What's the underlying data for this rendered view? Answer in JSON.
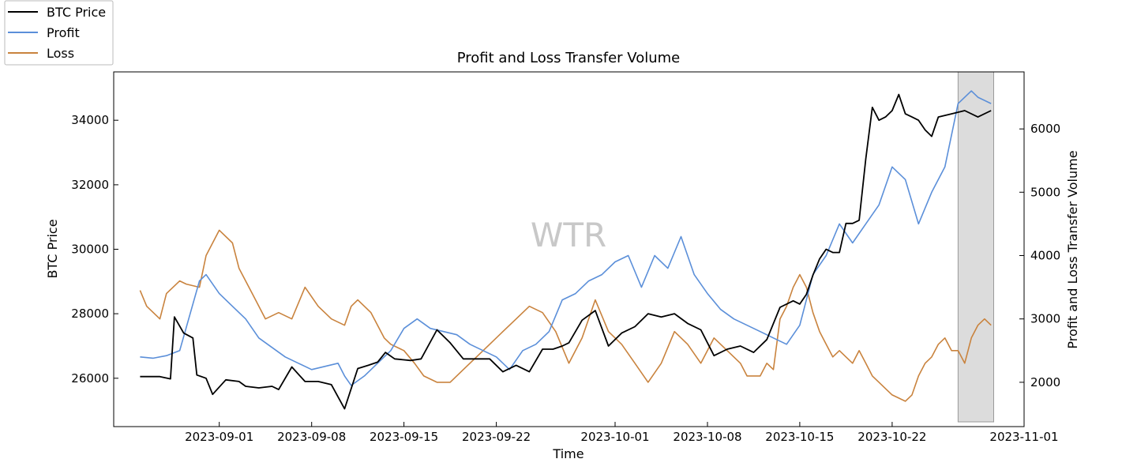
{
  "chart_data": {
    "type": "line",
    "title": "Profit and Loss Transfer Volume",
    "xlabel": "Time",
    "ylabel_left": "BTC Price",
    "ylabel_right": "Profit and Loss Transfer Volume",
    "watermark": "WTR",
    "x_start": "2023-08-26",
    "x_end": "2023-10-30",
    "xlim": [
      "2023-08-24",
      "2023-11-01"
    ],
    "ylim_left": [
      24500,
      35500
    ],
    "ylim_right": [
      1300,
      6900
    ],
    "x_ticks": [
      "2023-09-01",
      "2023-09-08",
      "2023-09-15",
      "2023-09-22",
      "2023-10-01",
      "2023-10-08",
      "2023-10-15",
      "2023-10-22",
      "2023-11-01"
    ],
    "y_ticks_left": [
      26000,
      28000,
      30000,
      32000,
      34000
    ],
    "y_ticks_right": [
      2000,
      3000,
      4000,
      5000,
      6000
    ],
    "highlight_range": [
      "2023-10-27",
      "2023-10-29.7"
    ],
    "legend": {
      "position": "top-left",
      "entries": [
        "BTC Price",
        "Profit",
        "Loss"
      ]
    },
    "series": [
      {
        "name": "BTC Price",
        "axis": "left",
        "color": "#000000",
        "x": [
          0,
          1.5,
          2.3,
          2.6,
          3.3,
          4.0,
          4.3,
          5.0,
          5.5,
          6.5,
          7.5,
          8.0,
          9.0,
          10.0,
          10.5,
          11.5,
          12.5,
          13.5,
          14.5,
          15.5,
          16.5,
          17.3,
          18.0,
          18.6,
          19.3,
          20.5,
          21.3,
          22.5,
          23.5,
          24.5,
          25.5,
          26.5,
          27.5,
          28.5,
          29.5,
          30.5,
          31.3,
          32.0,
          32.5,
          33.5,
          34.5,
          35.5,
          36.5,
          37.5,
          38.5,
          39.5,
          40.5,
          41.5,
          42.5,
          43.5,
          44.5,
          45.5,
          46.5,
          47.5,
          48.5,
          49.5,
          50.0,
          50.5,
          51.0,
          51.5,
          52.0,
          52.5,
          53.0,
          53.5,
          54.0,
          54.5,
          55.0,
          55.5,
          56.0,
          56.5,
          57.0,
          57.5,
          58.0,
          58.5,
          59.0,
          59.5,
          60.0,
          60.5,
          61.5,
          62.5,
          63.5,
          64.5
        ],
        "values": [
          26050,
          26050,
          25980,
          27900,
          27400,
          27250,
          26100,
          26000,
          25500,
          25950,
          25900,
          25750,
          25700,
          25750,
          25650,
          26350,
          25900,
          25900,
          25800,
          25050,
          26300,
          26400,
          26500,
          26800,
          26600,
          26550,
          26600,
          27500,
          27100,
          26600,
          26600,
          26600,
          26200,
          26400,
          26200,
          26900,
          26900,
          27000,
          27100,
          27800,
          28100,
          27000,
          27400,
          27600,
          28000,
          27900,
          28000,
          27700,
          27500,
          26700,
          26900,
          27000,
          26800,
          27200,
          28200,
          28400,
          28300,
          28600,
          29200,
          29700,
          30000,
          29900,
          29900,
          30800,
          30800,
          30900,
          32800,
          34400,
          34000,
          34100,
          34300,
          34800,
          34200,
          34100,
          34000,
          33700,
          33500,
          34100,
          34200,
          34300,
          34100,
          34300
        ]
      },
      {
        "name": "Profit",
        "axis": "right",
        "color": "#5b8fd9",
        "x": [
          0,
          1.0,
          2.0,
          3.0,
          4.5,
          5.0,
          6.0,
          7.0,
          8.0,
          9.0,
          10.0,
          11.0,
          12.0,
          13.0,
          14.0,
          15.0,
          15.5,
          16.0,
          17.0,
          18.0,
          19.0,
          20.0,
          21.0,
          22.0,
          23.0,
          24.0,
          25.0,
          26.0,
          27.0,
          28.0,
          29.0,
          30.0,
          31.0,
          32.0,
          33.0,
          34.0,
          35.0,
          36.0,
          37.0,
          38.0,
          39.0,
          40.0,
          41.0,
          42.0,
          43.0,
          44.0,
          45.0,
          46.0,
          47.0,
          48.0,
          49.0,
          50.0,
          51.0,
          52.0,
          53.0,
          54.0,
          55.0,
          56.0,
          57.0,
          58.0,
          59.0,
          60.0,
          61.0,
          62.0,
          63.0,
          63.5,
          64.5
        ],
        "values": [
          2400,
          2380,
          2420,
          2500,
          3600,
          3700,
          3400,
          3200,
          3000,
          2700,
          2550,
          2400,
          2300,
          2200,
          2250,
          2300,
          2100,
          1950,
          2100,
          2300,
          2500,
          2850,
          3000,
          2850,
          2800,
          2750,
          2600,
          2500,
          2400,
          2200,
          2500,
          2600,
          2800,
          3300,
          3400,
          3600,
          3700,
          3900,
          4000,
          3500,
          4000,
          3800,
          4300,
          3700,
          3400,
          3150,
          3000,
          2900,
          2800,
          2700,
          2600,
          2900,
          3700,
          4000,
          4500,
          4200,
          4500,
          4800,
          5400,
          5200,
          4500,
          5000,
          5400,
          6400,
          6600,
          6500,
          6400
        ]
      },
      {
        "name": "Loss",
        "axis": "right",
        "color": "#c9833e",
        "x": [
          0,
          0.5,
          1.5,
          2.0,
          3.0,
          3.5,
          4.5,
          5.0,
          6.0,
          7.0,
          7.5,
          8.5,
          9.5,
          10.5,
          11.5,
          12.5,
          13.5,
          14.5,
          15.5,
          16.0,
          16.5,
          17.5,
          18.5,
          19.0,
          20.0,
          20.8,
          21.5,
          22.5,
          23.5,
          24.5,
          25.5,
          26.5,
          27.5,
          28.5,
          29.5,
          30.5,
          31.5,
          32.5,
          33.5,
          34.5,
          35.5,
          36.5,
          37.5,
          38.5,
          39.5,
          40.5,
          41.5,
          42.5,
          43.5,
          44.5,
          45.5,
          46.0,
          46.5,
          47.0,
          47.5,
          48.0,
          48.5,
          49.0,
          49.5,
          50.0,
          50.5,
          51.0,
          51.5,
          52.0,
          52.5,
          53.0,
          53.5,
          54.0,
          54.5,
          55.0,
          55.5,
          56.0,
          56.5,
          57.0,
          57.5,
          58.0,
          58.5,
          59.0,
          59.5,
          60.0,
          60.5,
          61.0,
          61.5,
          62.0,
          62.5,
          63.0,
          63.5,
          64.0,
          64.5
        ],
        "values": [
          3450,
          3200,
          3000,
          3400,
          3600,
          3550,
          3500,
          4000,
          4400,
          4200,
          3800,
          3400,
          3000,
          3100,
          3000,
          3500,
          3200,
          3000,
          2900,
          3200,
          3300,
          3100,
          2700,
          2600,
          2500,
          2300,
          2100,
          2000,
          2000,
          2200,
          2400,
          2600,
          2800,
          3000,
          3200,
          3100,
          2800,
          2300,
          2700,
          3300,
          2800,
          2600,
          2300,
          2000,
          2300,
          2800,
          2600,
          2300,
          2700,
          2500,
          2300,
          2100,
          2100,
          2100,
          2300,
          2200,
          3000,
          3200,
          3500,
          3700,
          3500,
          3100,
          2800,
          2600,
          2400,
          2500,
          2400,
          2300,
          2500,
          2300,
          2100,
          2000,
          1900,
          1800,
          1750,
          1700,
          1800,
          2100,
          2300,
          2400,
          2600,
          2700,
          2500,
          2500,
          2300,
          2700,
          2900,
          3000,
          2900
        ]
      }
    ]
  }
}
